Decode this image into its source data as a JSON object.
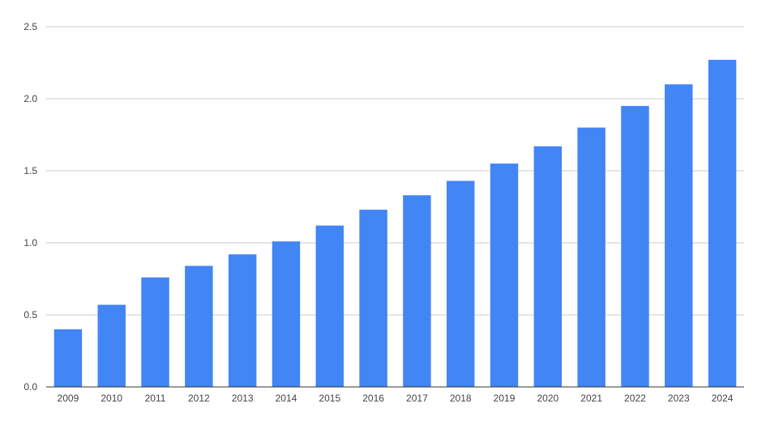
{
  "chart_data": {
    "type": "bar",
    "title": "",
    "xlabel": "",
    "ylabel": "",
    "categories": [
      "2009",
      "2010",
      "2011",
      "2012",
      "2013",
      "2014",
      "2015",
      "2016",
      "2017",
      "2018",
      "2019",
      "2020",
      "2021",
      "2022",
      "2023",
      "2024"
    ],
    "values": [
      0.4,
      0.57,
      0.76,
      0.84,
      0.92,
      1.01,
      1.12,
      1.23,
      1.33,
      1.43,
      1.55,
      1.67,
      1.8,
      1.95,
      2.1,
      2.27
    ],
    "ylim": [
      0,
      2.5
    ],
    "yticks": [
      "0.0",
      "0.5",
      "1.0",
      "1.5",
      "2.0",
      "2.5"
    ],
    "grid": true,
    "legend": "none",
    "colors": {
      "bar": "#4285F4",
      "grid": "#cccccc",
      "axis": "#333333",
      "text": "#444444"
    }
  }
}
